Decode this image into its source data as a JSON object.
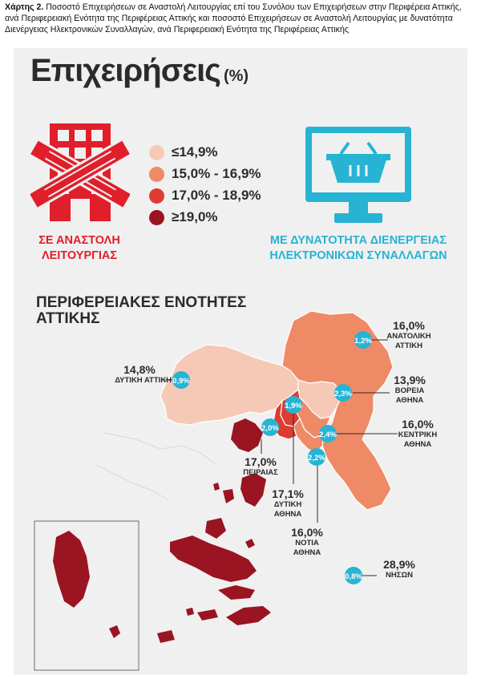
{
  "caption": {
    "prefix": "Χάρτης 2.",
    "text": " Ποσοστό Επιχειρήσεων σε Αναστολή Λειτουργίας επί του Συνόλου των Επιχειρήσεων στην Περιφέρεια Αττικής, ανά Περιφερειακή Ενότητα της Περιφέρειας Αττικής και ποσοστό Επιχειρήσεων σε Αναστολή Λειτουργίας με δυνατότητα Διενέργειας Ηλεκτρονικών Συναλλαγών, ανά Περιφερειακή Ενότητα της Περιφέρειας Αττικής"
  },
  "title": {
    "main": "Επιχειρήσεις",
    "unit": "(%)"
  },
  "legend": {
    "items": [
      {
        "label": "≤14,9%",
        "color": "#f6c9b6"
      },
      {
        "label": "15,0% - 16,9%",
        "color": "#ef8a67"
      },
      {
        "label": "17,0% - 18,9%",
        "color": "#dd3c32"
      },
      {
        "label": "≥19,0%",
        "color": "#9a1421"
      }
    ]
  },
  "icons": {
    "suspended": {
      "icon": "closed-building-icon",
      "label_line1": "ΣΕ ΑΝΑΣΤΟΛΗ",
      "label_line2": "ΛΕΙΤΟΥΡΓΙΑΣ",
      "color": "#e01f2b"
    },
    "online": {
      "icon": "monitor-shopping-basket-icon",
      "label_line1": "ΜΕ ΔΥΝΑΤΟΤΗΤΑ ΔΙΕΝΕΡΓΕΙΑΣ",
      "label_line2": "ΗΛΕΚΤΡΟΝΙΚΩΝ ΣΥΝΑΛΛΑΓΩΝ",
      "color": "#27b3d3"
    }
  },
  "map_title": {
    "line1": "ΠΕΡΙΦΕΡΕΙΑΚΕΣ ΕΝΟΤΗΤΕΣ",
    "line2": "ΑΤΤΙΚΗΣ"
  },
  "regions": [
    {
      "id": "anatoliki",
      "name_line1": "ΑΝΑΤΟΛΙΚΗ",
      "name_line2": "ΑΤΤΙΚΗ",
      "suspended": "16,0%",
      "online": "1,2%"
    },
    {
      "id": "dytiki-attiki",
      "name_line1": "ΔΥΤΙΚΗ ΑΤΤΙΚΗ",
      "name_line2": "",
      "suspended": "14,8%",
      "online": "0,9%"
    },
    {
      "id": "voreia",
      "name_line1": "ΒΟΡΕΙΑ",
      "name_line2": "ΑΘΗΝΑ",
      "suspended": "13,9%",
      "online": "2,3%"
    },
    {
      "id": "kentriki",
      "name_line1": "ΚΕΝΤΡΙΚΗ",
      "name_line2": "ΑΘΗΝΑ",
      "suspended": "16,0%",
      "online": "2,4%"
    },
    {
      "id": "peiraias",
      "name_line1": "ΠΕΙΡΑΙΑΣ",
      "name_line2": "",
      "suspended": "17,0%",
      "online": "2,0%"
    },
    {
      "id": "dytiki-athina",
      "name_line1": "ΔΥΤΙΚΗ",
      "name_line2": "ΑΘΗΝΑ",
      "suspended": "17,1%",
      "online": "1,9%"
    },
    {
      "id": "notia",
      "name_line1": "ΝΟΤΙΑ",
      "name_line2": "ΑΘΗΝΑ",
      "suspended": "16,0%",
      "online": "2,2%"
    },
    {
      "id": "nison",
      "name_line1": "ΝΗΣΩΝ",
      "name_line2": "",
      "suspended": "28,9%",
      "online": "0,8%"
    }
  ]
}
